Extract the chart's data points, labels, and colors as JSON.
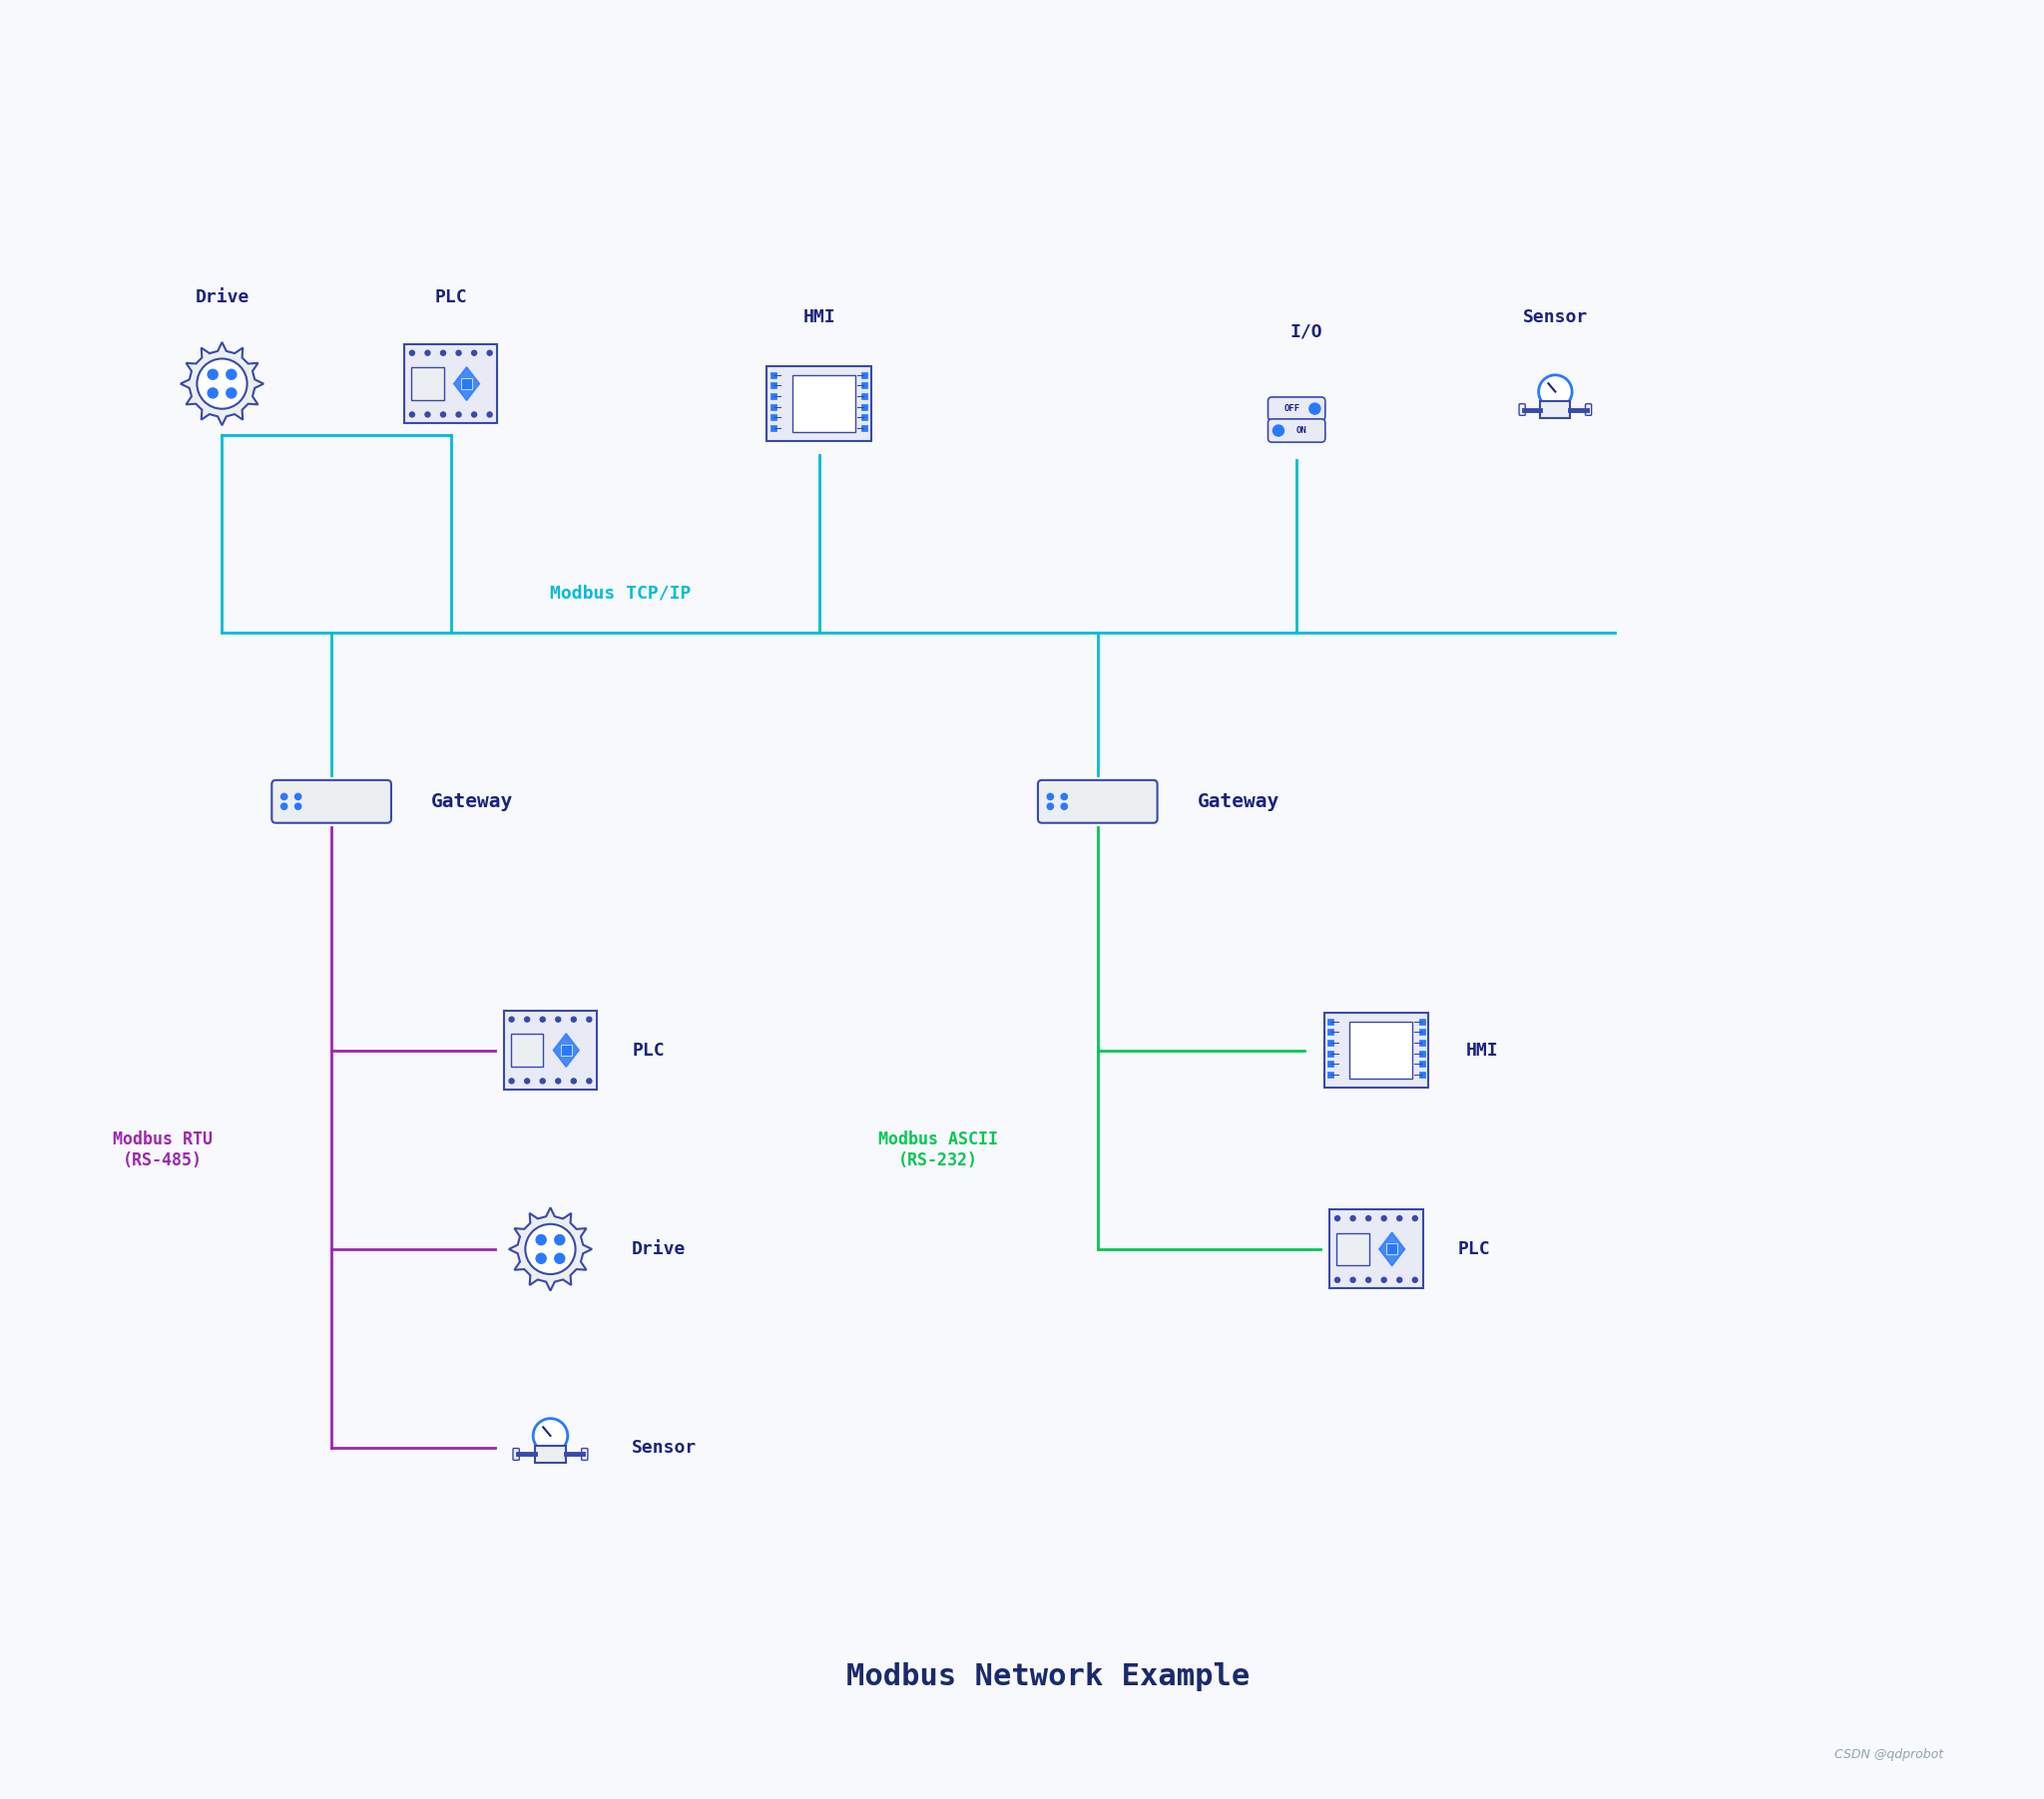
{
  "bg_color": "#f8f9fc",
  "title": "Modbus Network Example",
  "title_color": "#1a2a6c",
  "title_fontsize": 22,
  "watermark": "CSDN @qdprobot",
  "line_cyan": "#00bcd4",
  "line_purple": "#9c27b0",
  "line_green": "#00c853",
  "device_outline": "#3949ab",
  "device_fill": "#e8eaf6",
  "device_fill2": "#eceff1",
  "blue_accent": "#2979ff",
  "dark_blue": "#1a237e",
  "label_dark": "#1a237e",
  "label_cyan": "#00bcd4",
  "label_purple": "#9c27b0",
  "label_green": "#00c853",
  "modbus_tcp_label": "Modbus TCP/IP",
  "modbus_rtu_label": "Modbus RTU\n(RS-485)",
  "modbus_ascii_label": "Modbus ASCII\n(RS-232)"
}
